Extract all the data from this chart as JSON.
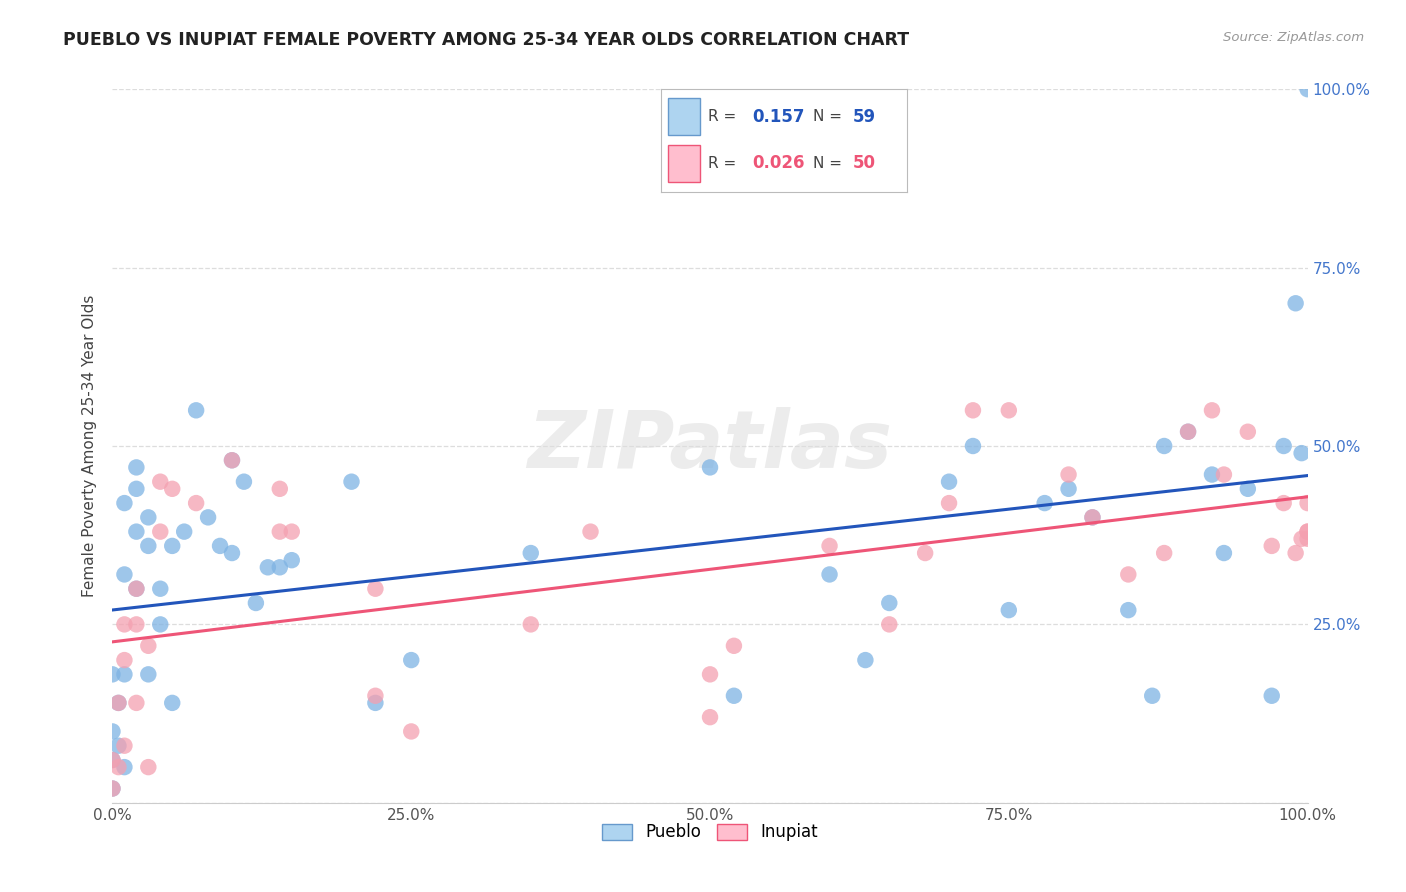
{
  "title": "PUEBLO VS INUPIAT FEMALE POVERTY AMONG 25-34 YEAR OLDS CORRELATION CHART",
  "source": "Source: ZipAtlas.com",
  "ylabel": "Female Poverty Among 25-34 Year Olds",
  "pueblo_R": 0.157,
  "pueblo_N": 59,
  "inupiat_R": 0.026,
  "inupiat_N": 50,
  "pueblo_color": "#7EB3E3",
  "inupiat_color": "#F4A0B0",
  "pueblo_line_color": "#2255BB",
  "inupiat_line_color": "#EE5577",
  "background_color": "#FFFFFF",
  "watermark": "ZIPatlas",
  "pueblo_x": [
    0.0,
    0.0,
    0.0,
    0.0,
    0.005,
    0.005,
    0.01,
    0.01,
    0.01,
    0.01,
    0.02,
    0.02,
    0.02,
    0.02,
    0.03,
    0.03,
    0.03,
    0.04,
    0.04,
    0.05,
    0.05,
    0.06,
    0.07,
    0.08,
    0.09,
    0.1,
    0.1,
    0.11,
    0.12,
    0.13,
    0.14,
    0.15,
    0.2,
    0.22,
    0.25,
    0.35,
    0.5,
    0.52,
    0.6,
    0.63,
    0.65,
    0.7,
    0.72,
    0.75,
    0.78,
    0.8,
    0.82,
    0.85,
    0.87,
    0.88,
    0.9,
    0.92,
    0.93,
    0.95,
    0.97,
    0.98,
    0.99,
    0.995,
    1.0
  ],
  "pueblo_y": [
    0.02,
    0.06,
    0.1,
    0.18,
    0.08,
    0.14,
    0.05,
    0.18,
    0.32,
    0.42,
    0.3,
    0.38,
    0.44,
    0.47,
    0.18,
    0.36,
    0.4,
    0.25,
    0.3,
    0.14,
    0.36,
    0.38,
    0.55,
    0.4,
    0.36,
    0.35,
    0.48,
    0.45,
    0.28,
    0.33,
    0.33,
    0.34,
    0.45,
    0.14,
    0.2,
    0.35,
    0.47,
    0.15,
    0.32,
    0.2,
    0.28,
    0.45,
    0.5,
    0.27,
    0.42,
    0.44,
    0.4,
    0.27,
    0.15,
    0.5,
    0.52,
    0.46,
    0.35,
    0.44,
    0.15,
    0.5,
    0.7,
    0.49,
    1.0
  ],
  "inupiat_x": [
    0.0,
    0.0,
    0.005,
    0.005,
    0.01,
    0.01,
    0.01,
    0.02,
    0.02,
    0.02,
    0.03,
    0.03,
    0.04,
    0.04,
    0.05,
    0.07,
    0.1,
    0.14,
    0.14,
    0.15,
    0.22,
    0.22,
    0.25,
    0.35,
    0.4,
    0.5,
    0.5,
    0.52,
    0.6,
    0.65,
    0.68,
    0.7,
    0.72,
    0.75,
    0.8,
    0.82,
    0.85,
    0.88,
    0.9,
    0.92,
    0.93,
    0.95,
    0.97,
    0.98,
    0.99,
    0.995,
    1.0,
    1.0,
    1.0,
    1.0
  ],
  "inupiat_y": [
    0.02,
    0.06,
    0.05,
    0.14,
    0.08,
    0.2,
    0.25,
    0.14,
    0.25,
    0.3,
    0.05,
    0.22,
    0.38,
    0.45,
    0.44,
    0.42,
    0.48,
    0.38,
    0.44,
    0.38,
    0.15,
    0.3,
    0.1,
    0.25,
    0.38,
    0.12,
    0.18,
    0.22,
    0.36,
    0.25,
    0.35,
    0.42,
    0.55,
    0.55,
    0.46,
    0.4,
    0.32,
    0.35,
    0.52,
    0.55,
    0.46,
    0.52,
    0.36,
    0.42,
    0.35,
    0.37,
    0.37,
    0.42,
    0.38,
    0.38
  ],
  "xlim": [
    0.0,
    1.0
  ],
  "ylim": [
    0.0,
    1.0
  ],
  "xticks": [
    0.0,
    0.25,
    0.5,
    0.75,
    1.0
  ],
  "yticks": [
    0.0,
    0.25,
    0.5,
    0.75,
    1.0
  ],
  "xticklabels": [
    "0.0%",
    "25.0%",
    "50.0%",
    "75.0%",
    "100.0%"
  ],
  "right_yticklabels": [
    "",
    "25.0%",
    "50.0%",
    "75.0%",
    "100.0%"
  ],
  "right_ytick_color": "#4477CC",
  "grid_color": "#DDDDDD",
  "tick_label_color": "#555555"
}
